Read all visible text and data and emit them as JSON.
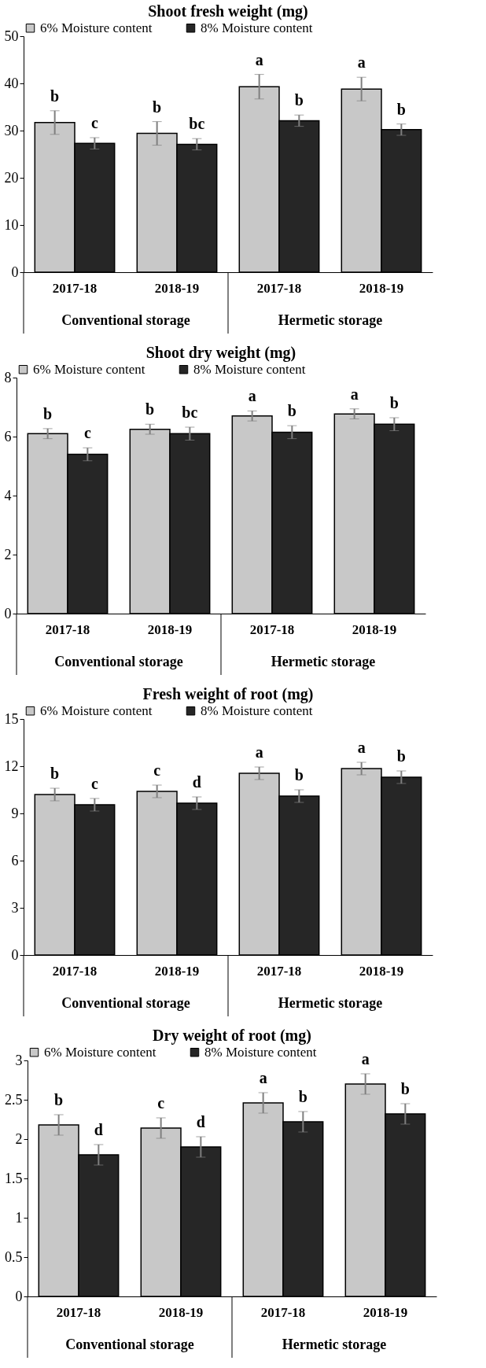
{
  "chart_data": [
    {
      "type": "bar",
      "title": "Shoot fresh weight (mg)",
      "categories": [
        "2017-18",
        "2018-19",
        "2017-18",
        "2018-19"
      ],
      "annotations": [
        "Conventional storage",
        "Hermetic storage"
      ],
      "legend": "top",
      "ylim": [
        0,
        50
      ],
      "yticks": [
        0,
        10,
        20,
        30,
        40,
        50
      ],
      "series": [
        {
          "name": "6% Moisture content",
          "color": "#c8c8c8",
          "values": [
            31.7,
            29.4,
            39.3,
            38.8
          ],
          "errors": [
            2.5,
            2.5,
            2.6,
            2.5
          ],
          "value_labels": [
            "b",
            "b",
            "a",
            "a"
          ]
        },
        {
          "name": "8% Moisture content",
          "color": "#262626",
          "values": [
            27.3,
            27.1,
            32.1,
            30.2
          ],
          "errors": [
            1.2,
            1.2,
            1.2,
            1.2
          ],
          "value_labels": [
            "c",
            "bc",
            "b",
            "b"
          ]
        }
      ]
    },
    {
      "type": "bar",
      "title": "Shoot dry weight (mg)",
      "categories": [
        "2017-18",
        "2018-19",
        "2017-18",
        "2018-19"
      ],
      "annotations": [
        "Conventional storage",
        "Hermetic storage"
      ],
      "legend": "top",
      "ylim": [
        0,
        8
      ],
      "yticks": [
        0,
        2,
        4,
        6,
        8
      ],
      "series": [
        {
          "name": "6% Moisture content",
          "color": "#c8c8c8",
          "values": [
            6.1,
            6.25,
            6.7,
            6.77
          ],
          "errors": [
            0.17,
            0.17,
            0.17,
            0.17
          ],
          "value_labels": [
            "b",
            "b",
            "a",
            "a"
          ]
        },
        {
          "name": "8% Moisture content",
          "color": "#262626",
          "values": [
            5.4,
            6.1,
            6.15,
            6.42
          ],
          "errors": [
            0.22,
            0.22,
            0.22,
            0.22
          ],
          "value_labels": [
            "c",
            "bc",
            "b",
            "b"
          ]
        }
      ]
    },
    {
      "type": "bar",
      "title": "Fresh weight of root (mg)",
      "categories": [
        "2017-18",
        "2018-19",
        "2017-18",
        "2018-19"
      ],
      "annotations": [
        "Conventional storage",
        "Hermetic storage"
      ],
      "legend": "top",
      "ylim": [
        0,
        15
      ],
      "yticks": [
        0,
        3,
        6,
        9,
        12,
        15
      ],
      "series": [
        {
          "name": "6% Moisture content",
          "color": "#c8c8c8",
          "values": [
            10.2,
            10.4,
            11.55,
            11.85
          ],
          "errors": [
            0.4,
            0.4,
            0.4,
            0.4
          ],
          "value_labels": [
            "b",
            "c",
            "a",
            "a"
          ]
        },
        {
          "name": "8% Moisture content",
          "color": "#262626",
          "values": [
            9.55,
            9.65,
            10.1,
            11.3
          ],
          "errors": [
            0.4,
            0.4,
            0.4,
            0.4
          ],
          "value_labels": [
            "c",
            "d",
            "b",
            "b"
          ]
        }
      ]
    },
    {
      "type": "bar",
      "title": "Dry weight of root (mg)",
      "categories": [
        "2017-18",
        "2018-19",
        "2017-18",
        "2018-19"
      ],
      "annotations": [
        "Conventional storage",
        "Hermetic storage"
      ],
      "legend": "top",
      "ylim": [
        0,
        3
      ],
      "yticks": [
        0,
        0.5,
        1,
        1.5,
        2,
        2.5,
        3
      ],
      "series": [
        {
          "name": "6% Moisture content",
          "color": "#c8c8c8",
          "values": [
            2.18,
            2.14,
            2.46,
            2.7
          ],
          "errors": [
            0.13,
            0.13,
            0.13,
            0.13
          ],
          "value_labels": [
            "b",
            "c",
            "a",
            "a"
          ]
        },
        {
          "name": "8% Moisture content",
          "color": "#262626",
          "values": [
            1.8,
            1.9,
            2.22,
            2.32
          ],
          "errors": [
            0.13,
            0.13,
            0.13,
            0.13
          ],
          "value_labels": [
            "d",
            "d",
            "b",
            "b"
          ]
        }
      ]
    }
  ]
}
